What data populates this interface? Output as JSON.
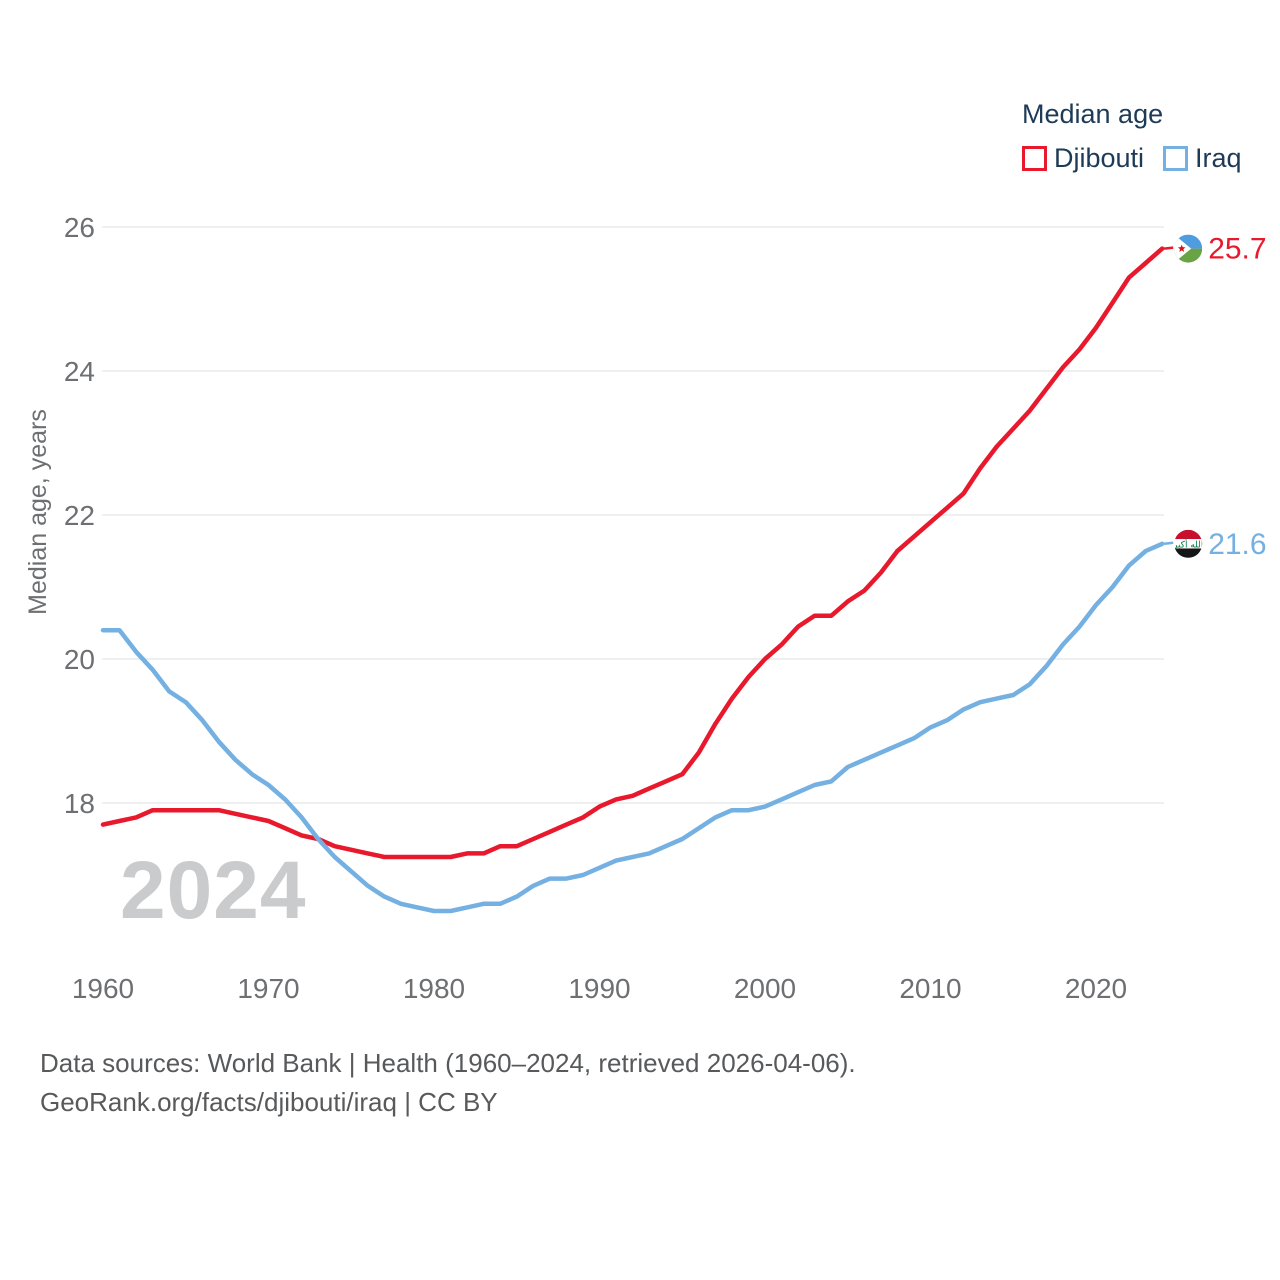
{
  "legend": {
    "title": "Median age",
    "items": [
      {
        "label": "Djibouti",
        "color": "#e8192c"
      },
      {
        "label": "Iraq",
        "color": "#74b0e2"
      }
    ]
  },
  "watermark": "2024",
  "footer": {
    "line1": "Data sources: World Bank | Health (1960–2024, retrieved 2026-04-06).",
    "line2": "GeoRank.org/facts/djibouti/iraq | CC BY"
  },
  "theme": {
    "grid_color": "#e9eaeb",
    "tick_color": "#6d6f72",
    "axis_title_color": "#6d6f72",
    "watermark_color": "#c9cbcc",
    "footer_color": "#58595b",
    "legend_text_color": "#1d3a57",
    "background": "#ffffff"
  },
  "flags": {
    "djibouti": {
      "blue": "#4f9de0",
      "green": "#69a343",
      "white": "#ffffff",
      "star_red": "#d7141a"
    },
    "iraq": {
      "red": "#c8102e",
      "white": "#ffffff",
      "black": "#161616",
      "script_green": "#007a3d",
      "script_text": "الله أكبر"
    }
  },
  "chart_data": {
    "type": "line",
    "title": "Median age",
    "xlabel": "",
    "ylabel": "Median age, years",
    "grid": "horizontal",
    "legend_position": "top-right",
    "ylim": [
      16.1,
      26.3
    ],
    "xlim": [
      1960,
      2024
    ],
    "y_ticks": [
      18,
      20,
      22,
      24,
      26
    ],
    "x_ticks": [
      1960,
      1970,
      1980,
      1990,
      2000,
      2010,
      2020
    ],
    "x": [
      1960,
      1961,
      1962,
      1963,
      1964,
      1965,
      1966,
      1967,
      1968,
      1969,
      1970,
      1971,
      1972,
      1973,
      1974,
      1975,
      1976,
      1977,
      1978,
      1979,
      1980,
      1981,
      1982,
      1983,
      1984,
      1985,
      1986,
      1987,
      1988,
      1989,
      1990,
      1991,
      1992,
      1993,
      1994,
      1995,
      1996,
      1997,
      1998,
      1999,
      2000,
      2001,
      2002,
      2003,
      2004,
      2005,
      2006,
      2007,
      2008,
      2009,
      2010,
      2011,
      2012,
      2013,
      2014,
      2015,
      2016,
      2017,
      2018,
      2019,
      2020,
      2021,
      2022,
      2023,
      2024
    ],
    "series": [
      {
        "name": "Djibouti",
        "color": "#e8192c",
        "flag": "djibouti",
        "end_label": "25.7",
        "end_value": 25.7,
        "values": [
          17.7,
          17.75,
          17.8,
          17.9,
          17.9,
          17.9,
          17.9,
          17.9,
          17.85,
          17.8,
          17.75,
          17.65,
          17.55,
          17.5,
          17.4,
          17.35,
          17.3,
          17.25,
          17.25,
          17.25,
          17.25,
          17.25,
          17.3,
          17.3,
          17.4,
          17.4,
          17.5,
          17.6,
          17.7,
          17.8,
          17.95,
          18.05,
          18.1,
          18.2,
          18.3,
          18.4,
          18.7,
          19.1,
          19.45,
          19.75,
          20.0,
          20.2,
          20.45,
          20.6,
          20.6,
          20.8,
          20.95,
          21.2,
          21.5,
          21.7,
          21.9,
          22.1,
          22.3,
          22.65,
          22.95,
          23.2,
          23.45,
          23.75,
          24.05,
          24.3,
          24.6,
          24.95,
          25.3,
          25.5,
          25.7
        ]
      },
      {
        "name": "Iraq",
        "color": "#74b0e2",
        "flag": "iraq",
        "end_label": "21.6",
        "end_value": 21.6,
        "values": [
          20.4,
          20.4,
          20.1,
          19.85,
          19.55,
          19.4,
          19.15,
          18.85,
          18.6,
          18.4,
          18.25,
          18.05,
          17.8,
          17.5,
          17.25,
          17.05,
          16.85,
          16.7,
          16.6,
          16.55,
          16.5,
          16.5,
          16.55,
          16.6,
          16.6,
          16.7,
          16.85,
          16.95,
          16.95,
          17.0,
          17.1,
          17.2,
          17.25,
          17.3,
          17.4,
          17.5,
          17.65,
          17.8,
          17.9,
          17.9,
          17.95,
          18.05,
          18.15,
          18.25,
          18.3,
          18.5,
          18.6,
          18.7,
          18.8,
          18.9,
          19.05,
          19.15,
          19.3,
          19.4,
          19.45,
          19.5,
          19.65,
          19.9,
          20.2,
          20.45,
          20.75,
          21.0,
          21.3,
          21.5,
          21.6
        ]
      }
    ]
  }
}
